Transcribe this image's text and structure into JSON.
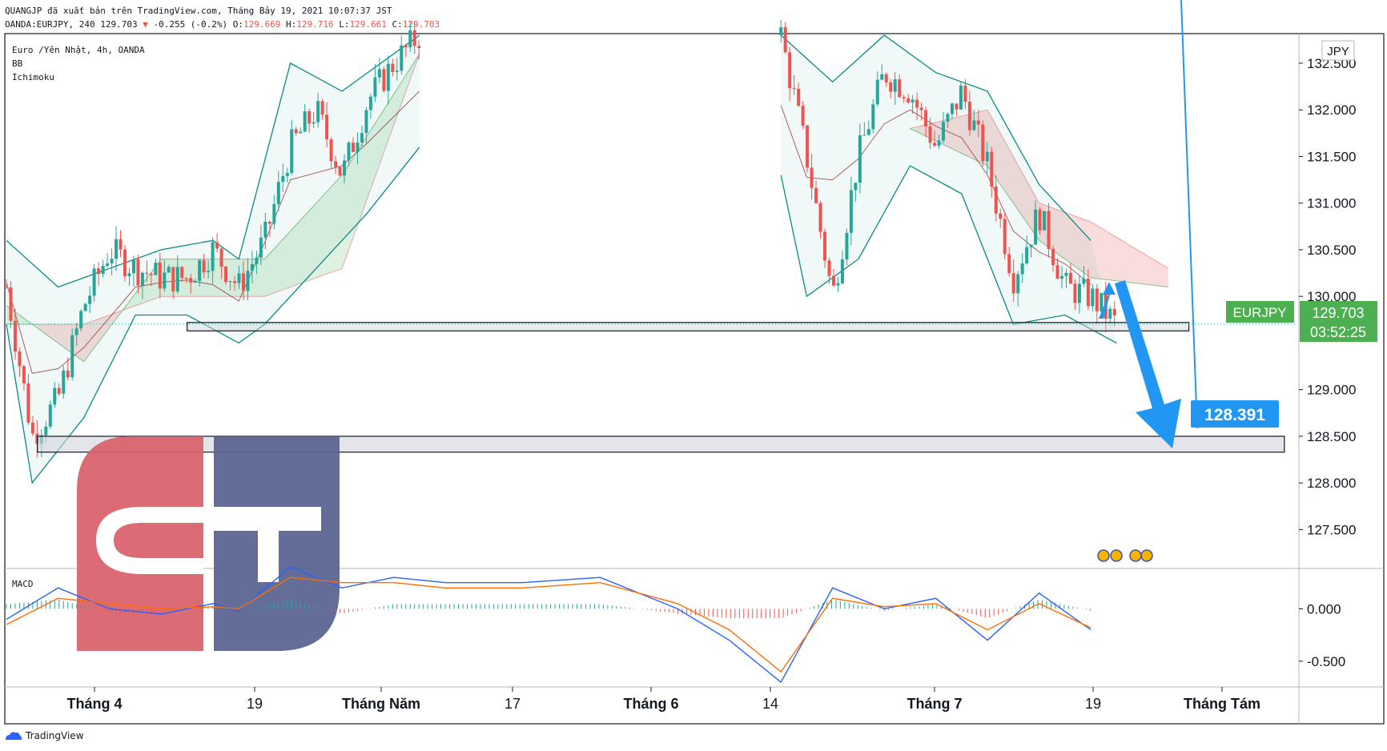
{
  "header": {
    "line1": "QUANGJP đã xuất bản trên TradingView.com, Tháng Bảy 19, 2021 10:07:37 JST",
    "symbol_line": "OANDA:EURJPY, 240 129.703",
    "change": "-0.255 (-0.2%)",
    "o_label": "O:",
    "o_val": "129.669",
    "h_label": "H:",
    "h_val": "129.716",
    "l_label": "L:",
    "l_val": "129.661",
    "c_label": "C:",
    "c_val": "129.703"
  },
  "indicators": {
    "main": "Euro /Yên Nhật, 4h, OANDA",
    "bb": "BB",
    "ichimoku": "Ichimoku",
    "macd": "MACD"
  },
  "currency_badge": "JPY",
  "symbol_tag": "EURJPY",
  "last_price": "129.703",
  "countdown": "03:52:25",
  "target_label": "128.391",
  "footer_brand": "TradingView",
  "colors": {
    "up": "#26a69a",
    "down": "#ef5350",
    "bb": "#0b8a84",
    "macd": "#2962ff",
    "signal": "#ff6d00",
    "target": "#2196f3",
    "price_tag": "#4caf50",
    "logo_red": "#d9636e",
    "logo_blue": "#5b6592"
  },
  "chart_data": {
    "type": "candlestick",
    "symbol": "EURJPY",
    "timeframe": "4h",
    "price_axis": {
      "labels": [
        "132.500",
        "132.000",
        "131.500",
        "131.000",
        "130.500",
        "130.000",
        "129.000",
        "128.500",
        "128.000",
        "127.500"
      ],
      "values": [
        132.5,
        132.0,
        131.5,
        131.0,
        130.5,
        130.0,
        129.0,
        128.5,
        128.0,
        127.5
      ],
      "range": [
        127.1,
        132.8
      ]
    },
    "macd_axis": {
      "labels": [
        "0.000",
        "-0.500"
      ],
      "values": [
        0.0,
        -0.5
      ],
      "range": [
        -0.73,
        0.37
      ]
    },
    "time_axis": {
      "labels": [
        "Tháng 4",
        "19",
        "Tháng Năm",
        "17",
        "Tháng 6",
        "14",
        "Tháng 7",
        "19",
        "Tháng Tám"
      ],
      "bold": [
        true,
        false,
        true,
        false,
        true,
        false,
        true,
        false,
        true
      ]
    },
    "zones": [
      {
        "name": "support",
        "from": 129.63,
        "to": 129.72
      },
      {
        "name": "target-zone",
        "from": 128.33,
        "to": 128.5
      }
    ],
    "price_path": [
      [
        0,
        130.1
      ],
      [
        1,
        128.5
      ],
      [
        2,
        128.9
      ],
      [
        3,
        129.9
      ],
      [
        4,
        130.5
      ],
      [
        5,
        130.3
      ],
      [
        6,
        130.2
      ],
      [
        7,
        130.2
      ],
      [
        8,
        130.5
      ],
      [
        9,
        130.1
      ],
      [
        10,
        130.6
      ],
      [
        11,
        131.6
      ],
      [
        12,
        132.0
      ],
      [
        13,
        131.3
      ],
      [
        14,
        132.1
      ],
      [
        15,
        132.5
      ],
      [
        16,
        132.8
      ],
      [
        30,
        132.8
      ],
      [
        31,
        131.5
      ],
      [
        32,
        130.0
      ],
      [
        33,
        131.5
      ],
      [
        34,
        132.4
      ],
      [
        35,
        132.2
      ],
      [
        36,
        131.6
      ],
      [
        37,
        132.2
      ],
      [
        38,
        131.4
      ],
      [
        39,
        130.2
      ],
      [
        40,
        130.9
      ],
      [
        41,
        130.1
      ],
      [
        42,
        130.0
      ],
      [
        43,
        129.7
      ]
    ],
    "bb_upper": [
      [
        0,
        130.6
      ],
      [
        2,
        130.1
      ],
      [
        4,
        130.3
      ],
      [
        6,
        130.5
      ],
      [
        8,
        130.6
      ],
      [
        9,
        130.4
      ],
      [
        11,
        132.5
      ],
      [
        13,
        132.2
      ],
      [
        16,
        132.8
      ],
      [
        30,
        132.8
      ],
      [
        32,
        132.3
      ],
      [
        34,
        132.8
      ],
      [
        36,
        132.4
      ],
      [
        38,
        132.2
      ],
      [
        40,
        131.2
      ],
      [
        42,
        130.6
      ]
    ],
    "bb_lower": [
      [
        0,
        129.7
      ],
      [
        1,
        128.0
      ],
      [
        3,
        128.7
      ],
      [
        5,
        129.8
      ],
      [
        7,
        129.8
      ],
      [
        9,
        129.5
      ],
      [
        10,
        129.7
      ],
      [
        12,
        130.3
      ],
      [
        14,
        130.9
      ],
      [
        16,
        131.6
      ],
      [
        30,
        131.3
      ],
      [
        31,
        130.0
      ],
      [
        33,
        130.4
      ],
      [
        35,
        131.4
      ],
      [
        37,
        131.1
      ],
      [
        39,
        129.7
      ],
      [
        41,
        129.8
      ],
      [
        43,
        129.5
      ]
    ],
    "kumo_span_a": [
      [
        0,
        129.9
      ],
      [
        3,
        129.3
      ],
      [
        6,
        130.4
      ],
      [
        10,
        130.4
      ],
      [
        13,
        131.3
      ],
      [
        16,
        132.6
      ],
      [
        35,
        131.8
      ],
      [
        38,
        131.4
      ],
      [
        40,
        130.6
      ],
      [
        42,
        130.2
      ],
      [
        45,
        130.1
      ]
    ],
    "kumo_span_b": [
      [
        0,
        129.7
      ],
      [
        3,
        129.7
      ],
      [
        6,
        130.0
      ],
      [
        10,
        130.0
      ],
      [
        13,
        130.3
      ],
      [
        16,
        132.6
      ],
      [
        35,
        131.8
      ],
      [
        38,
        132.0
      ],
      [
        40,
        131.0
      ],
      [
        42,
        130.8
      ],
      [
        45,
        130.3
      ]
    ],
    "macd_line": [
      [
        0,
        -0.1
      ],
      [
        2,
        0.2
      ],
      [
        4,
        0.0
      ],
      [
        6,
        -0.05
      ],
      [
        8,
        0.05
      ],
      [
        9,
        -0.02
      ],
      [
        11,
        0.4
      ],
      [
        13,
        0.2
      ],
      [
        15,
        0.3
      ],
      [
        17,
        0.25
      ],
      [
        20,
        0.25
      ],
      [
        23,
        0.3
      ],
      [
        26,
        0.0
      ],
      [
        28,
        -0.3
      ],
      [
        30,
        -0.7
      ],
      [
        32,
        0.2
      ],
      [
        34,
        0.0
      ],
      [
        36,
        0.1
      ],
      [
        38,
        -0.3
      ],
      [
        40,
        0.15
      ],
      [
        42,
        -0.2
      ]
    ],
    "signal_line": [
      [
        0,
        -0.15
      ],
      [
        2,
        0.1
      ],
      [
        4,
        0.05
      ],
      [
        6,
        0.0
      ],
      [
        8,
        0.02
      ],
      [
        9,
        0.0
      ],
      [
        11,
        0.3
      ],
      [
        13,
        0.25
      ],
      [
        15,
        0.25
      ],
      [
        17,
        0.2
      ],
      [
        20,
        0.2
      ],
      [
        23,
        0.25
      ],
      [
        26,
        0.05
      ],
      [
        28,
        -0.2
      ],
      [
        30,
        -0.6
      ],
      [
        32,
        0.1
      ],
      [
        34,
        0.02
      ],
      [
        36,
        0.05
      ],
      [
        38,
        -0.2
      ],
      [
        40,
        0.05
      ],
      [
        42,
        -0.18
      ]
    ]
  }
}
